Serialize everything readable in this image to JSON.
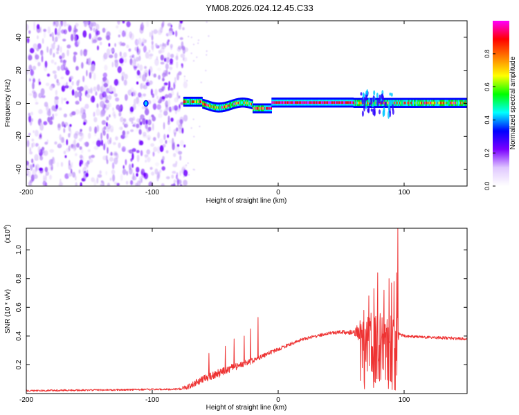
{
  "figure_title": "YM08.2026.024.12.45.C33",
  "chart_data": [
    {
      "type": "heatmap",
      "title": "YM08.2026.024.12.45.C33",
      "xlabel": "Height of straight line (km)",
      "ylabel": "Frequency (Hz)",
      "xlim": [
        -200,
        150
      ],
      "ylim": [
        -50,
        50
      ],
      "xticks": [
        -200,
        -100,
        0,
        100
      ],
      "yticks": [
        -40,
        -20,
        0,
        20,
        40
      ],
      "colorbar": {
        "label": "Normalized spectral amplitude",
        "range": [
          0,
          1
        ],
        "ticks": [
          0.0,
          0.2,
          0.4,
          0.6,
          0.8
        ],
        "colors": [
          "#ffffff",
          "#e0c8ff",
          "#7a00ff",
          "#0000ff",
          "#00ffff",
          "#00ff00",
          "#ffff00",
          "#ff8000",
          "#ff0000",
          "#ff00ff"
        ]
      },
      "features": {
        "noise_region_km": [
          -200,
          -75
        ],
        "signal_start_km": -75,
        "ridge_center_hz": 0,
        "disturbance_km": [
          65,
          92
        ],
        "spot_km_hz": [
          -105,
          0
        ]
      }
    },
    {
      "type": "line",
      "xlabel": "Height of straight line (km)",
      "ylabel": "SNR (10 * v/v)",
      "y_scale_label": "(x10",
      "y_scale_exponent": "4",
      "xlim": [
        -200,
        150
      ],
      "ylim": [
        0,
        1.15
      ],
      "xticks": [
        -200,
        -100,
        0,
        100
      ],
      "yticks": [
        0.2,
        0.4,
        0.6,
        0.8,
        1.0
      ],
      "color": "#ee3333",
      "envelope": {
        "x": [
          -200,
          -80,
          -70,
          -60,
          -50,
          -40,
          -30,
          -20,
          -10,
          0,
          20,
          40,
          60,
          70,
          90,
          100,
          150
        ],
        "y": [
          0.02,
          0.03,
          0.05,
          0.1,
          0.13,
          0.17,
          0.2,
          0.23,
          0.27,
          0.31,
          0.38,
          0.42,
          0.43,
          0.44,
          0.44,
          0.4,
          0.38
        ]
      },
      "noise_amplitude": {
        "x": [
          -200,
          -80,
          -70,
          -50,
          -30,
          -10,
          10,
          40,
          60,
          68,
          95,
          96,
          150
        ],
        "y": [
          0.006,
          0.006,
          0.02,
          0.03,
          0.025,
          0.015,
          0.012,
          0.01,
          0.02,
          0.12,
          0.12,
          0.01,
          0.01
        ]
      },
      "peaks": [
        {
          "x": -65,
          "y": 0.1
        },
        {
          "x": -55,
          "y": 0.28
        },
        {
          "x": -42,
          "y": 0.33
        },
        {
          "x": -35,
          "y": 0.38
        },
        {
          "x": -27,
          "y": 0.4
        },
        {
          "x": -22,
          "y": 0.45
        },
        {
          "x": -16,
          "y": 0.53
        },
        {
          "x": 68,
          "y": 0.58
        },
        {
          "x": 72,
          "y": 0.68
        },
        {
          "x": 76,
          "y": 0.73
        },
        {
          "x": 79,
          "y": 0.84
        },
        {
          "x": 84,
          "y": 0.72
        },
        {
          "x": 88,
          "y": 0.8
        },
        {
          "x": 90,
          "y": 0.77
        },
        {
          "x": 92,
          "y": 0.78
        },
        {
          "x": 94,
          "y": 0.84
        },
        {
          "x": 95,
          "y": 1.15
        }
      ]
    }
  ]
}
